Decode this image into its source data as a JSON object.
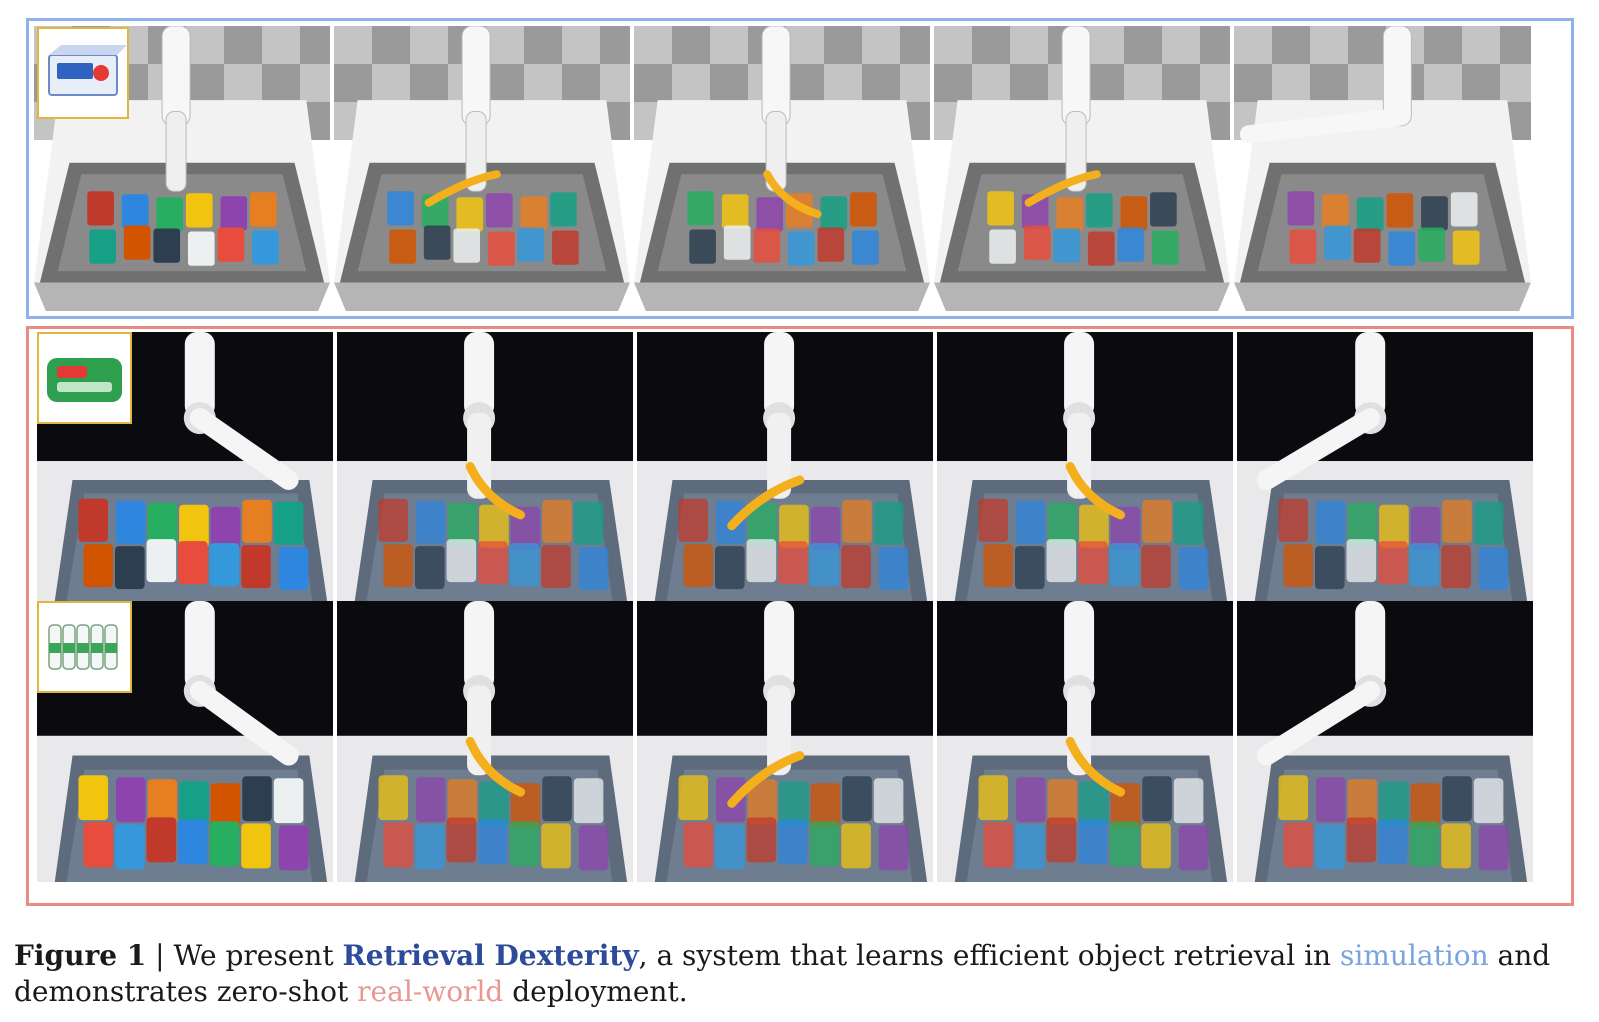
{
  "caption": {
    "figure_label": "Figure 1",
    "separator": "|",
    "text_before": "We present",
    "system_name": "Retrieval Dexterity",
    "text_middle": ", a system that learns efficient object retrieval in",
    "simulation_word": "simulation",
    "text_and": "and demonstrates zero-shot",
    "real_word": "real-world",
    "text_end": "deployment."
  },
  "simulation_row": {
    "border_color": "#8fb2e8",
    "frames": 5,
    "target_object": "soap-box-icon"
  },
  "real_rows": {
    "border_color": "#e88a86",
    "rows": [
      {
        "target_object": "green-wipes-pack-icon",
        "frames": 5
      },
      {
        "target_object": "yogurt-drink-bottles-icon",
        "frames": 5
      }
    ]
  },
  "colors": {
    "arrow": "#f4b01c",
    "system_name": "#2d4a9b",
    "simulation": "#7aa3e0",
    "real_world": "#e79891",
    "inset_border": "#e2b53e"
  }
}
